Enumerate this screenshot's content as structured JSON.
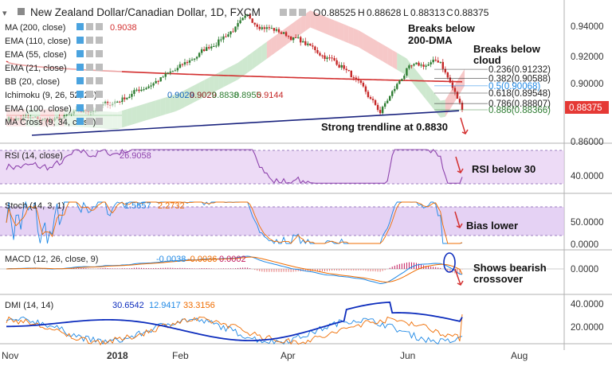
{
  "header": {
    "title": "New Zealand Dollar/Canadian Dollar, 1D, FXCM",
    "ohlc": [
      {
        "label": "O",
        "value": "0.88525"
      },
      {
        "label": "H",
        "value": "0.88628"
      },
      {
        "label": "L",
        "value": "0.88313"
      },
      {
        "label": "C",
        "value": "0.88375"
      }
    ]
  },
  "indicators": [
    {
      "label": "MA (200, close)",
      "values": [
        "0.9038"
      ],
      "colors": [
        "#d32f2f"
      ]
    },
    {
      "label": "EMA (110, close)",
      "values": [],
      "colors": []
    },
    {
      "label": "EMA (55, close)",
      "values": [],
      "colors": []
    },
    {
      "label": "EMA (21, close)",
      "values": [],
      "colors": []
    },
    {
      "label": "BB (20, close)",
      "values": [],
      "colors": []
    },
    {
      "label": "Ichimoku (9, 26, 52, 26)",
      "values": [
        "0.9029",
        "0.9029",
        "0.8838",
        "0.8955",
        "0.9144"
      ],
      "colors": [
        "#1565c0",
        "#8b1a1a",
        "#2e7d32",
        "#2e7d32",
        "#c62828"
      ]
    },
    {
      "label": "EMA (100, close)",
      "values": [],
      "colors": []
    },
    {
      "label": "MA Cross (9, 34, close)",
      "values": [],
      "colors": []
    }
  ],
  "annotations": {
    "breaks_dma": [
      "Breaks below",
      "200-DMA"
    ],
    "breaks_cloud": [
      "Breaks below",
      "cloud"
    ],
    "trendline": "Strong trendline at 0.8830",
    "rsi": "RSI below 30",
    "stoch": "Bias lower",
    "macd": [
      "Shows bearish",
      "crossover"
    ]
  },
  "fib_levels": [
    {
      "ratio": "0.236",
      "price": "0.91232",
      "color": "#222222"
    },
    {
      "ratio": "0.382",
      "price": "0.90588",
      "color": "#222222"
    },
    {
      "ratio": "0.5",
      "price": "0.90068",
      "color": "#1e88e5"
    },
    {
      "ratio": "0.618",
      "price": "0.89548",
      "color": "#222222"
    },
    {
      "ratio": "0.786",
      "price": "0.88807",
      "color": "#222222"
    },
    {
      "ratio": "0.886",
      "price": "0.88366",
      "color": "#2e7d32"
    }
  ],
  "price_axis": {
    "ticks": [
      "0.94000",
      "0.92000",
      "0.90000",
      "0.86000"
    ],
    "current": "0.88375",
    "current_color": "#e53935"
  },
  "panes": {
    "rsi": {
      "label": "RSI (14, close)",
      "value": "26.9058",
      "value_color": "#8e44ad",
      "ticks": [
        "40.0000"
      ]
    },
    "stoch": {
      "label": "Stoch (14, 3, 1)",
      "values": [
        "1.5657",
        "2.2732"
      ],
      "value_colors": [
        "#1e88e5",
        "#ef6c00"
      ],
      "ticks": [
        "50.0000",
        "0.0000"
      ]
    },
    "macd": {
      "label": "MACD (12, 26, close, 9)",
      "values": [
        "-0.0038",
        "-0.0036",
        "0.0002"
      ],
      "value_colors": [
        "#1e88e5",
        "#ef6c00",
        "#c2185b"
      ],
      "ticks": [
        "0.0000"
      ]
    },
    "dmi": {
      "label": "DMI (14, 14)",
      "values": [
        "30.6542",
        "12.9417",
        "33.3156"
      ],
      "value_colors": [
        "#0d2dbd",
        "#1e88e5",
        "#ef6c00"
      ],
      "ticks": [
        "40.0000",
        "20.0000"
      ]
    }
  },
  "time_axis": [
    "Nov",
    "2018",
    "Feb",
    "Apr",
    "Jun",
    "Aug"
  ],
  "colors": {
    "up_candle": "#2e7d32",
    "down_candle": "#c62828",
    "ma200": "#d32f2f",
    "cloud_green": "#a5d6a7",
    "cloud_red": "#ef9a9a",
    "trendline": "#1a237e",
    "band_fill": "#e1bee7",
    "arrow": "#d32f2f"
  },
  "chart_data": {
    "type": "candlestick",
    "symbol": "NZDCAD",
    "timeframe": "1D",
    "ylim": [
      0.858,
      0.952
    ],
    "x_labels": [
      "Nov",
      "2018",
      "Feb",
      "Apr",
      "Jun",
      "Aug"
    ],
    "close_path": [
      {
        "x": "Nov",
        "y": 0.878
      },
      {
        "x": "Dec",
        "y": 0.876
      },
      {
        "x": "2018",
        "y": 0.89
      },
      {
        "x": "Feb",
        "y": 0.911
      },
      {
        "x": "Mar",
        "y": 0.948
      },
      {
        "x": "Apr",
        "y": 0.934
      },
      {
        "x": "May",
        "y": 0.914
      },
      {
        "x": "Jun",
        "y": 0.882
      },
      {
        "x": "Jun",
        "y": 0.912
      },
      {
        "x": "Jul",
        "y": 0.918
      },
      {
        "x": "Jul",
        "y": 0.8838
      }
    ],
    "moving_average_200": 0.9038,
    "ichimoku": [
      0.9029,
      0.9029,
      0.8838,
      0.8955,
      0.9144
    ],
    "trendline_level": 0.883,
    "fibonacci": [
      {
        "ratio": 0.236,
        "price": 0.91232
      },
      {
        "ratio": 0.382,
        "price": 0.90588
      },
      {
        "ratio": 0.5,
        "price": 0.90068
      },
      {
        "ratio": 0.618,
        "price": 0.89548
      },
      {
        "ratio": 0.786,
        "price": 0.88807
      },
      {
        "ratio": 0.886,
        "price": 0.88366
      }
    ],
    "last_close": 0.88375,
    "rsi_last": 26.9058,
    "stoch_last": [
      1.5657,
      2.2732
    ],
    "macd_last": [
      -0.0038,
      -0.0036,
      0.0002
    ],
    "dmi_last": [
      30.6542,
      12.9417,
      33.3156
    ]
  }
}
